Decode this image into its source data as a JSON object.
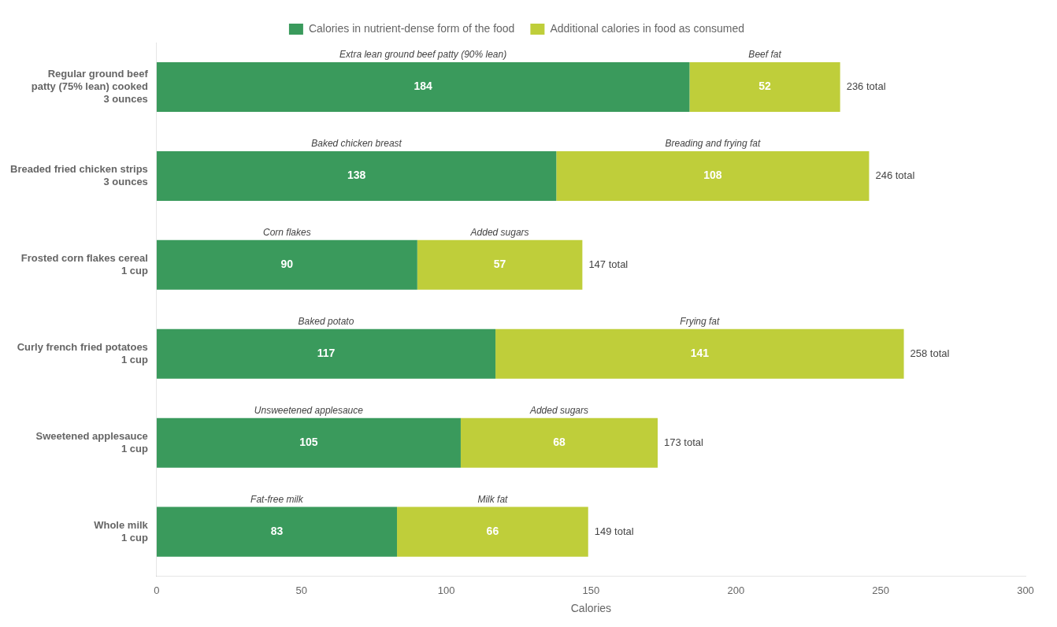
{
  "chart_data": {
    "type": "bar",
    "orientation": "horizontal",
    "stacked": true,
    "categories": [
      "Whole milk\n1 cup",
      "Sweetened applesauce\n1 cup",
      "Curly french fried potatoes\n1 cup",
      "Frosted corn flakes cereal\n1 cup",
      "Breaded fried chicken strips\n3 ounces",
      "Regular ground beef\npatty (75% lean) cooked\n3 ounces"
    ],
    "series": [
      {
        "name": "Calories in nutrient-dense form of the food",
        "color": "#3a9a5c",
        "values": [
          83,
          105,
          117,
          90,
          138,
          184
        ],
        "segment_labels": [
          "Fat-free milk",
          "Unsweetened applesauce",
          "Baked potato",
          "Corn flakes",
          "Baked chicken breast",
          "Extra lean ground beef patty (90% lean)"
        ]
      },
      {
        "name": "Additional calories in food as consumed",
        "color": "#bfce3a",
        "values": [
          66,
          68,
          141,
          57,
          108,
          52
        ],
        "segment_labels": [
          "Milk fat",
          "Added sugars",
          "Frying fat",
          "Added sugars",
          "Breading and frying fat",
          "Beef fat"
        ]
      }
    ],
    "totals": [
      149,
      173,
      258,
      147,
      246,
      236
    ],
    "total_labels": [
      "149 total",
      "173 total",
      "258 total",
      "147 total",
      "246 total",
      "236 total"
    ],
    "xlabel": "Calories",
    "xlim": [
      0,
      300
    ],
    "xticks": [
      0,
      50,
      100,
      150,
      200,
      250,
      300
    ],
    "data_labels": true,
    "grid": false,
    "legend": "top"
  }
}
